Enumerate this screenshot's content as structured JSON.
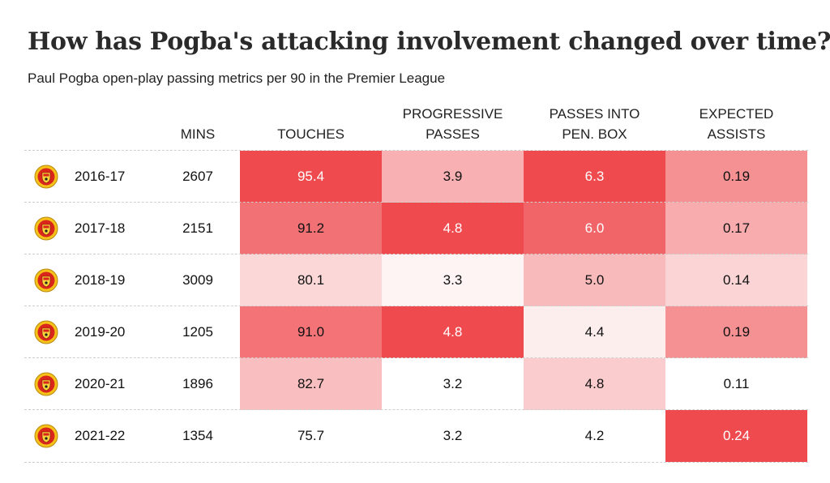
{
  "title": "How has Pogba's attacking involvement changed over time?",
  "subtitle": "Paul Pogba open-play passing metrics per 90 in the Premier League",
  "header": {
    "mins": "MINS",
    "touches": "TOUCHES",
    "progressive_passes": "PROGRESSIVE\nPASSES",
    "passes_into_box": "PASSES INTO\nPEN. BOX",
    "expected_assists": "EXPECTED\nASSISTS"
  },
  "row_icon": "manchester-united-crest-icon",
  "colors": {
    "heat_high": "#ef4b4f",
    "heat_low": "#ffffff",
    "text_on_high": "#ffffff",
    "text_default": "#111111"
  },
  "rows": [
    {
      "season": "2016-17",
      "mins": "2607",
      "touches": "95.4",
      "progressive_passes": "3.9",
      "passes_into_box": "6.3",
      "expected_assists": "0.19"
    },
    {
      "season": "2017-18",
      "mins": "2151",
      "touches": "91.2",
      "progressive_passes": "4.8",
      "passes_into_box": "6.0",
      "expected_assists": "0.17"
    },
    {
      "season": "2018-19",
      "mins": "3009",
      "touches": "80.1",
      "progressive_passes": "3.3",
      "passes_into_box": "5.0",
      "expected_assists": "0.14"
    },
    {
      "season": "2019-20",
      "mins": "1205",
      "touches": "91.0",
      "progressive_passes": "4.8",
      "passes_into_box": "4.4",
      "expected_assists": "0.19"
    },
    {
      "season": "2020-21",
      "mins": "1896",
      "touches": "82.7",
      "progressive_passes": "3.2",
      "passes_into_box": "4.8",
      "expected_assists": "0.11"
    },
    {
      "season": "2021-22",
      "mins": "1354",
      "touches": "75.7",
      "progressive_passes": "3.2",
      "passes_into_box": "4.2",
      "expected_assists": "0.24"
    }
  ],
  "chart_data": {
    "type": "table",
    "title": "How has Pogba's attacking involvement changed over time?",
    "subtitle": "Paul Pogba open-play passing metrics per 90 in the Premier League",
    "columns": [
      "",
      "MINS",
      "TOUCHES",
      "PROGRESSIVE PASSES",
      "PASSES INTO PEN. BOX",
      "EXPECTED ASSISTS"
    ],
    "categories": [
      "2016-17",
      "2017-18",
      "2018-19",
      "2019-20",
      "2020-21",
      "2021-22"
    ],
    "series": [
      {
        "name": "MINS",
        "values": [
          2607,
          2151,
          3009,
          1205,
          1896,
          1354
        ]
      },
      {
        "name": "TOUCHES",
        "values": [
          95.4,
          91.2,
          80.1,
          91.0,
          82.7,
          75.7
        ]
      },
      {
        "name": "PROGRESSIVE PASSES",
        "values": [
          3.9,
          4.8,
          3.3,
          4.8,
          3.2,
          3.2
        ]
      },
      {
        "name": "PASSES INTO PEN. BOX",
        "values": [
          6.3,
          6.0,
          5.0,
          4.4,
          4.8,
          4.2
        ]
      },
      {
        "name": "EXPECTED ASSISTS",
        "values": [
          0.19,
          0.17,
          0.14,
          0.19,
          0.11,
          0.24
        ]
      }
    ]
  }
}
